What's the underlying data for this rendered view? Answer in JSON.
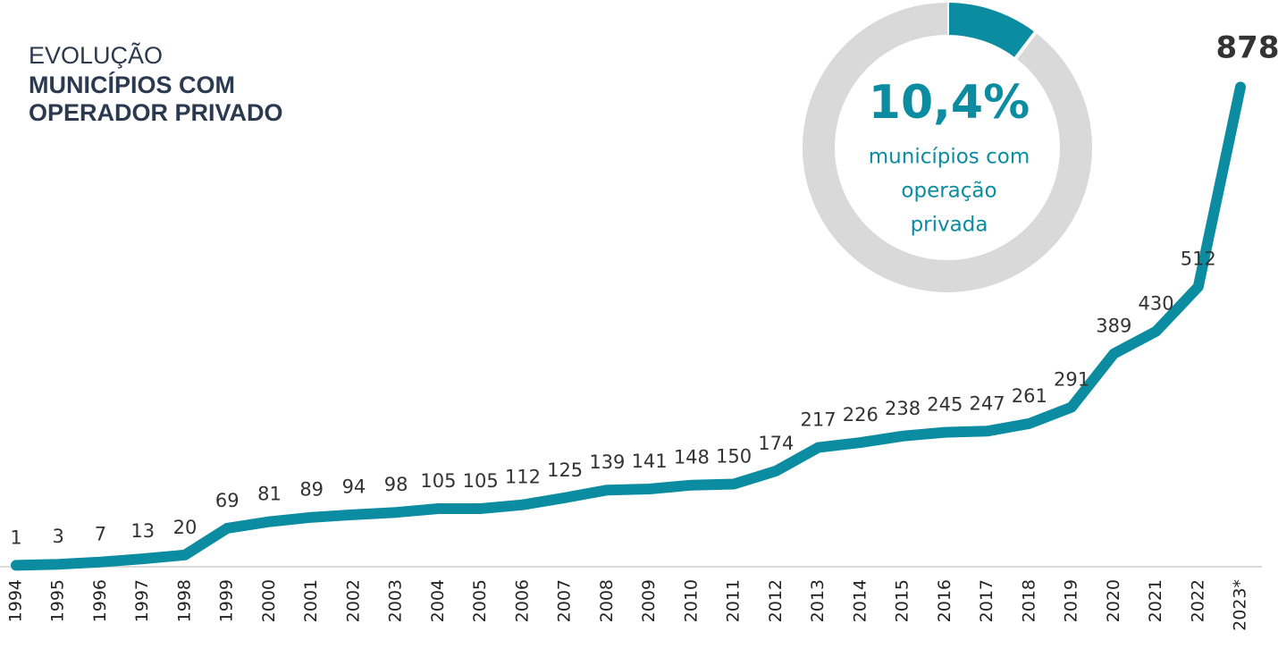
{
  "chart_data": [
    {
      "type": "line",
      "title": "EVOLUÇÃO",
      "subtitle": [
        "MUNICÍPIOS COM",
        "OPERADOR PRIVADO"
      ],
      "categories": [
        "1994",
        "1995",
        "1996",
        "1997",
        "1998",
        "1999",
        "2000",
        "2001",
        "2002",
        "2003",
        "2004",
        "2005",
        "2006",
        "2007",
        "2008",
        "2009",
        "2010",
        "2011",
        "2012",
        "2013",
        "2014",
        "2015",
        "2016",
        "2017",
        "2018",
        "2019",
        "2020",
        "2021",
        "2022",
        "2023*"
      ],
      "values": [
        1,
        3,
        7,
        13,
        20,
        69,
        81,
        89,
        94,
        98,
        105,
        105,
        112,
        125,
        139,
        141,
        148,
        150,
        174,
        217,
        226,
        238,
        245,
        247,
        261,
        291,
        389,
        430,
        512,
        878
      ],
      "color": "#0b8ca1",
      "ylim": [
        0,
        900
      ]
    },
    {
      "type": "donut",
      "values": [
        10.4,
        89.6
      ],
      "value_labels": [
        "10,4%",
        null
      ],
      "colors": [
        "#0b8ca1",
        "#d9d9d9"
      ],
      "caption": [
        "municípios com",
        "operação",
        "privada"
      ]
    }
  ]
}
